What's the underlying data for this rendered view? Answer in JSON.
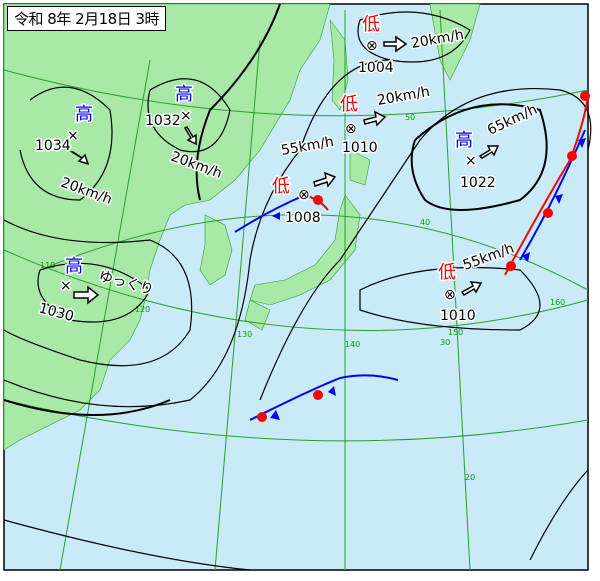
{
  "title": "令和 8年 2月18日 3時",
  "colors": {
    "sea": "#c9eaf9",
    "land": "#a8e9a8",
    "grid": "#2aa02a",
    "isobar": "#000000",
    "high": "#0000ff",
    "low": "#ff0000"
  },
  "systems": [
    {
      "type": "high",
      "symbol": "高",
      "pressure": "1034",
      "motion": "20km/h"
    },
    {
      "type": "high",
      "symbol": "高",
      "pressure": "1032",
      "motion": "20km/h"
    },
    {
      "type": "high",
      "symbol": "高",
      "pressure": "1030",
      "motion": "ゆっくり"
    },
    {
      "type": "low",
      "symbol": "低",
      "pressure": "1008",
      "motion": "55km/h"
    },
    {
      "type": "low",
      "symbol": "低",
      "pressure": "1010",
      "motion": "20km/h"
    },
    {
      "type": "low",
      "symbol": "低",
      "pressure": "1004",
      "motion": "20km/h"
    },
    {
      "type": "high",
      "symbol": "高",
      "pressure": "1022",
      "motion": "65km/h"
    },
    {
      "type": "low",
      "symbol": "低",
      "pressure": "1010",
      "motion": "55km/h"
    }
  ],
  "grid_labels": {
    "lat": [
      "50",
      "40",
      "30",
      "20"
    ],
    "lon": [
      "110",
      "120",
      "130",
      "140",
      "150",
      "160"
    ]
  }
}
